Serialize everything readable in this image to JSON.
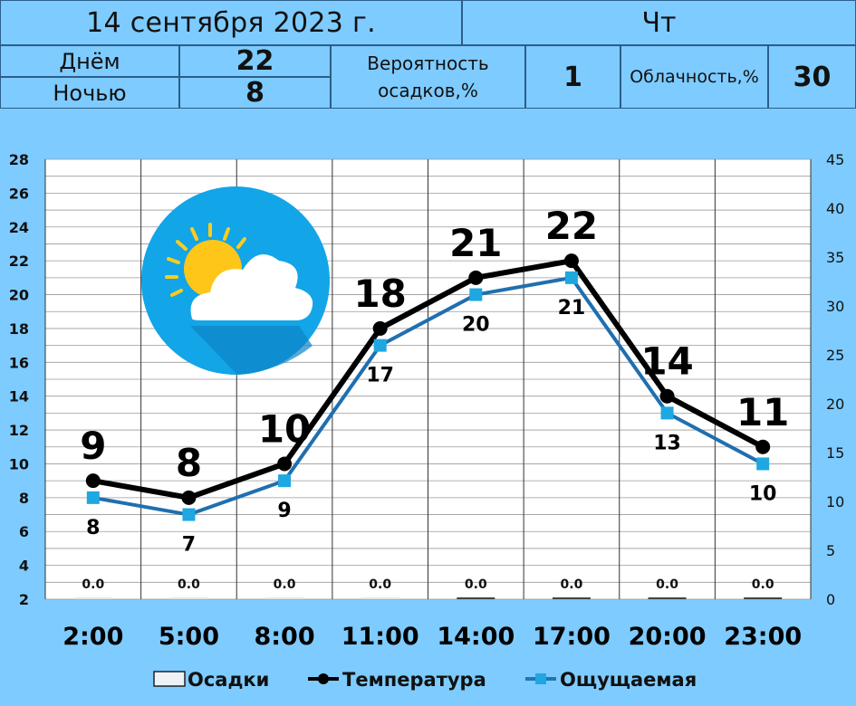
{
  "header": {
    "date": "14 сентября 2023 г.",
    "weekday": "Чт",
    "day_label": "Днём",
    "day_value": "22",
    "night_label": "Ночью",
    "night_value": "8",
    "precip_label_line1": "Вероятность",
    "precip_label_line2": "осадков,%",
    "precip_value": "1",
    "cloud_label": "Облачность,%",
    "cloud_value": "30"
  },
  "icon": "partly-cloudy-icon",
  "chart_data": {
    "type": "line",
    "categories": [
      "2:00",
      "5:00",
      "8:00",
      "11:00",
      "14:00",
      "17:00",
      "20:00",
      "23:00"
    ],
    "series": [
      {
        "name": "Температура",
        "values": [
          9,
          8,
          10,
          18,
          21,
          22,
          14,
          11
        ],
        "color": "#000000",
        "axis": "left"
      },
      {
        "name": "Ощущаемая",
        "values": [
          8,
          7,
          9,
          17,
          20,
          21,
          13,
          10
        ],
        "color": "#1f77b4",
        "axis": "left"
      },
      {
        "name": "Осадки",
        "values": [
          0.0,
          0.0,
          0.0,
          0.0,
          0.0,
          0.0,
          0.0,
          0.0
        ],
        "value_labels": [
          "0.0",
          "0.0",
          "0.0",
          "0.0",
          "0.0",
          "0.0",
          "0.0",
          "0.0"
        ],
        "type": "bar",
        "axis": "right"
      }
    ],
    "y_left": {
      "min": 2,
      "max": 28,
      "ticks": [
        2,
        4,
        6,
        8,
        10,
        12,
        14,
        16,
        18,
        20,
        22,
        24,
        26,
        28
      ]
    },
    "y_right": {
      "min": 0,
      "max": 45,
      "ticks": [
        0,
        5,
        10,
        15,
        20,
        25,
        30,
        35,
        40,
        45
      ]
    },
    "grid": true,
    "legend": "bottom"
  }
}
